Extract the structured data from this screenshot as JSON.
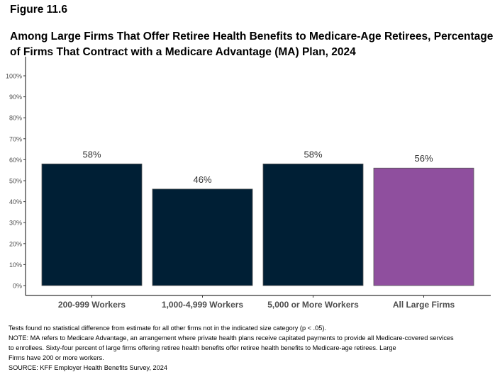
{
  "figure_label": "Figure 11.6",
  "title_lines": [
    "Among Large Firms That Offer Retiree Health Benefits to Medicare-Age Retirees, Percentage",
    "of Firms That Contract with a Medicare Advantage (MA) Plan, 2024"
  ],
  "chart_data": {
    "type": "bar",
    "title": "Among Large Firms That Offer Retiree Health Benefits to Medicare-Age Retirees, Percentage of Firms That Contract with a Medicare Advantage (MA) Plan, 2024",
    "categories": [
      "200-999 Workers",
      "1,000-4,999 Workers",
      "5,000 or More Workers",
      "All Large Firms"
    ],
    "values": [
      58,
      46,
      58,
      56
    ],
    "data_labels": [
      "58%",
      "46%",
      "58%",
      "56%"
    ],
    "colors": [
      "#001f35",
      "#001f35",
      "#001f35",
      "#8f4f9e"
    ],
    "xlabel": "",
    "ylabel": "",
    "ylim": [
      0,
      100
    ],
    "yticks": [
      0,
      10,
      20,
      30,
      40,
      50,
      60,
      70,
      80,
      90,
      100
    ],
    "ytick_labels": [
      "0%",
      "10%",
      "20%",
      "30%",
      "40%",
      "50%",
      "60%",
      "70%",
      "80%",
      "90%",
      "100%"
    ],
    "grid": false,
    "legend": "none"
  },
  "notes": [
    "Tests found no statistical difference from estimate for all other firms not in the indicated size category (p < .05).",
    "NOTE: MA refers to Medicare Advantage, an arrangement where private health plans receive capitated payments to provide all Medicare-covered services",
    "to enrollees.  Sixty-four percent of large firms offering retiree health benefits offer retiree health benefits to Medicare-age retirees.  Large",
    "Firms have 200 or more workers.",
    "SOURCE: KFF Employer Health Benefits Survey, 2024"
  ]
}
